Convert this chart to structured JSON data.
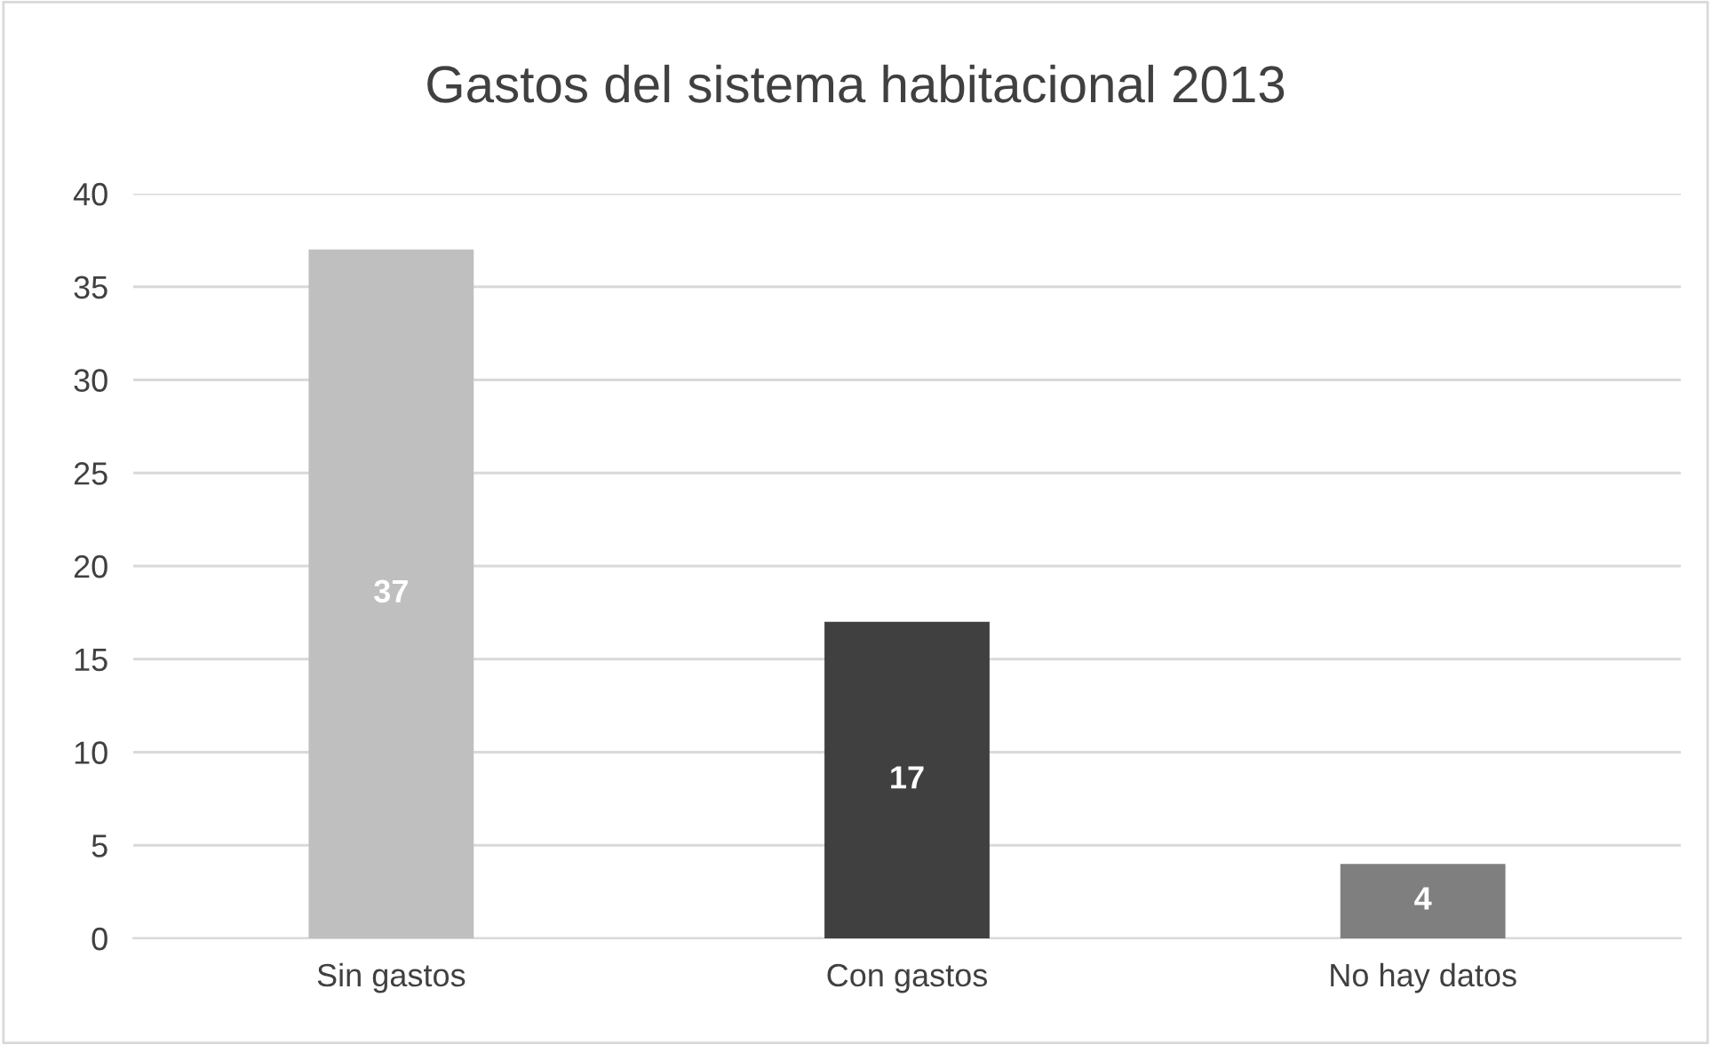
{
  "chart_data": {
    "type": "bar",
    "title": "Gastos del sistema habitacional 2013",
    "categories": [
      "Sin gastos",
      "Con gastos",
      "No hay datos"
    ],
    "values": [
      37,
      17,
      4
    ],
    "colors": [
      "#bfbfbf",
      "#404040",
      "#7f7f7f"
    ],
    "ylim": [
      0,
      40
    ],
    "yticks": [
      0,
      5,
      10,
      15,
      20,
      25,
      30,
      35,
      40
    ],
    "grid": "y",
    "data_labels": true,
    "legend": false
  }
}
